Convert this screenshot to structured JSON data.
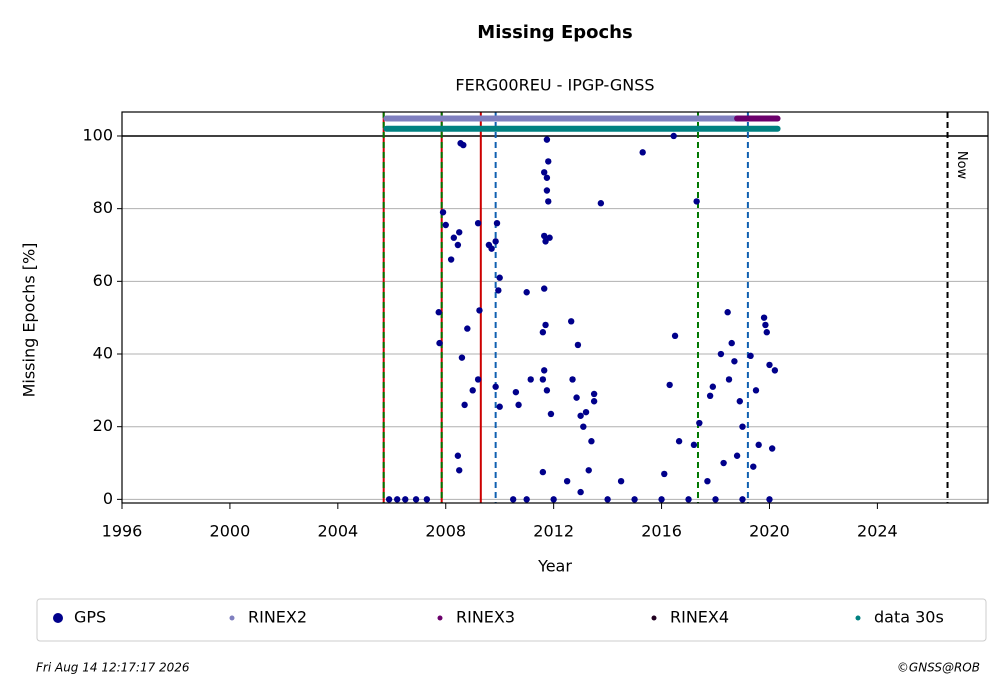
{
  "chart_data": {
    "type": "scatter",
    "title": "Missing Epochs",
    "subtitle": "FERG00REU - IPGP-GNSS",
    "x_label": "Year",
    "y_label": "Missing Epochs [%]",
    "xlim": [
      1996,
      2028.1
    ],
    "ylim": [
      -1,
      106.6
    ],
    "xticks": [
      1996,
      2000,
      2004,
      2008,
      2012,
      2016,
      2020,
      2024
    ],
    "yticks": [
      0,
      20,
      40,
      60,
      80,
      100
    ],
    "grid": true,
    "hline": 100,
    "vlines": [
      {
        "x": 2005.7,
        "color": "#cc0000",
        "style": "solid"
      },
      {
        "x": 2005.7,
        "color": "#007700",
        "style": "dashed"
      },
      {
        "x": 2007.85,
        "color": "#cc0000",
        "style": "solid"
      },
      {
        "x": 2007.85,
        "color": "#007700",
        "style": "dashed"
      },
      {
        "x": 2009.3,
        "color": "#cc0000",
        "style": "solid"
      },
      {
        "x": 2009.85,
        "color": "#1060b0",
        "style": "dashed"
      },
      {
        "x": 2017.35,
        "color": "#007700",
        "style": "dashed"
      },
      {
        "x": 2019.2,
        "color": "#1060b0",
        "style": "dashed"
      },
      {
        "x": 2026.6,
        "color": "#000000",
        "style": "dashed"
      }
    ],
    "now_label": "Now",
    "legend": "bottom",
    "series": [
      {
        "name": "GPS",
        "color": "#00008b",
        "mode": "markers",
        "x": [
          2005.9,
          2006.2,
          2006.5,
          2006.9,
          2007.3,
          2007.74,
          2007.77,
          2007.9,
          2008.0,
          2008.2,
          2008.3,
          2008.45,
          2008.5,
          2008.45,
          2008.5,
          2008.55,
          2008.65,
          2008.6,
          2008.7,
          2008.8,
          2009.0,
          2009.2,
          2009.2,
          2009.25,
          2009.6,
          2009.7,
          2009.85,
          2009.9,
          2009.85,
          2010.0,
          2009.95,
          2010.0,
          2010.6,
          2010.7,
          2011.0,
          2011.15,
          2011.65,
          2011.7,
          2011.75,
          2011.65,
          2011.75,
          2011.75,
          2011.8,
          2011.8,
          2011.85,
          2011.6,
          2011.65,
          2011.7,
          2011.65,
          2011.6,
          2011.75,
          2011.9,
          2011.6,
          2012.65,
          2012.9,
          2012.7,
          2012.85,
          2013.0,
          2013.1,
          2013.2,
          2013.5,
          2013.5,
          2013.4,
          2013.75,
          2014.5,
          2015.3,
          2016.45,
          2016.5,
          2016.3,
          2016.1,
          2016.65,
          2017.3,
          2017.4,
          2017.2,
          2017.8,
          2017.9,
          2018.2,
          2018.45,
          2018.6,
          2018.7,
          2018.5,
          2018.9,
          2019.3,
          2019.5,
          2019.8,
          2019.85,
          2019.9,
          2020.0,
          2020.2,
          2019.0,
          2019.6,
          2018.3,
          2017.7,
          2010.5,
          2011.0,
          2012.0,
          2013.0,
          2014.0,
          2015.0,
          2016.0,
          2017.0,
          2018.0,
          2019.0,
          2020.0,
          2012.5,
          2013.3,
          2018.8,
          2019.4,
          2020.1
        ],
        "values": [
          0,
          0,
          0,
          0,
          0,
          51.5,
          43,
          79,
          75.5,
          66,
          72,
          70,
          73.5,
          12,
          8,
          98,
          97.5,
          39,
          26,
          47,
          30,
          33,
          76,
          52,
          70,
          69,
          71,
          76,
          31,
          61,
          57.5,
          25.5,
          29.5,
          26,
          57,
          33,
          72.5,
          71,
          99,
          90,
          88.5,
          85,
          93,
          82,
          72,
          46,
          58,
          48,
          35.5,
          33,
          30,
          23.5,
          7.5,
          49,
          42.5,
          33,
          28,
          23,
          20,
          24,
          29,
          27,
          16,
          81.5,
          5,
          95.5,
          100,
          45,
          31.5,
          7,
          16,
          82,
          21,
          15,
          28.5,
          31,
          40,
          51.5,
          43,
          38,
          33,
          27,
          39.5,
          30,
          50,
          48,
          46,
          37,
          35.5,
          20,
          15,
          10,
          5,
          0,
          0,
          0,
          2,
          0,
          0,
          0,
          0,
          0,
          0,
          0,
          5,
          8,
          12,
          9,
          14
        ]
      },
      {
        "name": "RINEX2",
        "color": "#7f7fbf",
        "mode": "lines",
        "x": [
          2005.8,
          2018.8
        ],
        "values": [
          104.8,
          104.8
        ]
      },
      {
        "name": "RINEX3",
        "color": "#6b006b",
        "mode": "lines",
        "x": [
          2018.8,
          2020.3
        ],
        "values": [
          104.8,
          104.8
        ]
      },
      {
        "name": "RINEX4",
        "color": "#200020",
        "mode": "lines",
        "x": [],
        "values": []
      },
      {
        "name": "data 30s",
        "color": "#008080",
        "mode": "lines",
        "x": [
          2005.8,
          2020.3
        ],
        "values": [
          102,
          102
        ]
      }
    ],
    "footer_left": "Fri Aug 14 12:17:17 2026",
    "footer_right": "©GNSS@ROB"
  }
}
